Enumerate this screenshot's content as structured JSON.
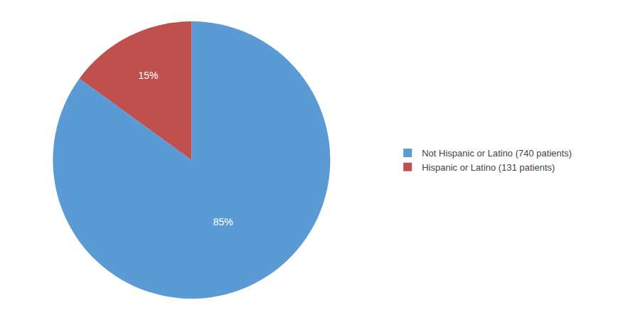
{
  "chart_data": {
    "type": "pie",
    "categories": [
      "Not Hispanic or Latino (740 patients)",
      "Hispanic or Latino (131 patients)"
    ],
    "values": [
      85,
      15
    ],
    "value_labels": [
      "85%",
      "15%"
    ],
    "colors": [
      "#5b9bd5",
      "#c0504d"
    ],
    "data_labels": true,
    "legend": "right"
  }
}
